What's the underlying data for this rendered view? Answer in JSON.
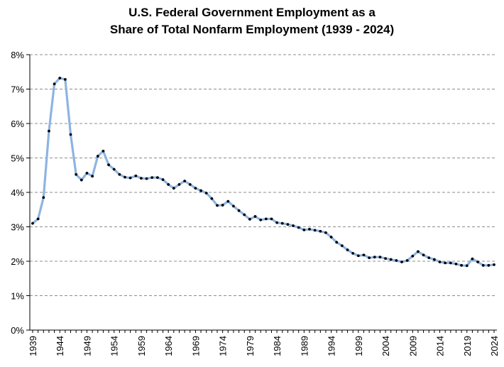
{
  "chart_data": {
    "type": "line",
    "title_line1": "U.S. Federal Government Employment as a",
    "title_line2": "Share of Total Nonfarm Employment (1939 - 2024)",
    "xlabel": "",
    "ylabel": "",
    "ylim": [
      0,
      8
    ],
    "y_ticks": [
      "0%",
      "1%",
      "2%",
      "3%",
      "4%",
      "5%",
      "6%",
      "7%",
      "8%"
    ],
    "x_tick_labels": [
      "1939",
      "1944",
      "1949",
      "1954",
      "1959",
      "1964",
      "1969",
      "1974",
      "1979",
      "1984",
      "1989",
      "1994",
      "1999",
      "2004",
      "2009",
      "2014",
      "2019",
      "2024"
    ],
    "grid": true,
    "legend": "none",
    "line_color": "#8db4e2",
    "marker_color": "#000000",
    "x": [
      1939,
      1940,
      1941,
      1942,
      1943,
      1944,
      1945,
      1946,
      1947,
      1948,
      1949,
      1950,
      1951,
      1952,
      1953,
      1954,
      1955,
      1956,
      1957,
      1958,
      1959,
      1960,
      1961,
      1962,
      1963,
      1964,
      1965,
      1966,
      1967,
      1968,
      1969,
      1970,
      1971,
      1972,
      1973,
      1974,
      1975,
      1976,
      1977,
      1978,
      1979,
      1980,
      1981,
      1982,
      1983,
      1984,
      1985,
      1986,
      1987,
      1988,
      1989,
      1990,
      1991,
      1992,
      1993,
      1994,
      1995,
      1996,
      1997,
      1998,
      1999,
      2000,
      2001,
      2002,
      2003,
      2004,
      2005,
      2006,
      2007,
      2008,
      2009,
      2010,
      2011,
      2012,
      2013,
      2014,
      2015,
      2016,
      2017,
      2018,
      2019,
      2020,
      2021,
      2022,
      2023,
      2024
    ],
    "series": [
      {
        "values": [
          3.1,
          3.23,
          3.85,
          5.78,
          7.15,
          7.32,
          7.28,
          5.68,
          4.52,
          4.36,
          4.56,
          4.47,
          5.05,
          5.2,
          4.8,
          4.67,
          4.52,
          4.44,
          4.42,
          4.48,
          4.41,
          4.4,
          4.43,
          4.43,
          4.37,
          4.23,
          4.12,
          4.23,
          4.33,
          4.23,
          4.12,
          4.05,
          3.98,
          3.82,
          3.62,
          3.63,
          3.74,
          3.6,
          3.47,
          3.35,
          3.22,
          3.3,
          3.2,
          3.23,
          3.23,
          3.12,
          3.1,
          3.07,
          3.03,
          2.98,
          2.91,
          2.93,
          2.9,
          2.87,
          2.83,
          2.7,
          2.55,
          2.45,
          2.33,
          2.23,
          2.16,
          2.18,
          2.1,
          2.12,
          2.12,
          2.08,
          2.05,
          2.02,
          1.98,
          2.02,
          2.15,
          2.28,
          2.18,
          2.1,
          2.05,
          1.98,
          1.95,
          1.95,
          1.92,
          1.88,
          1.87,
          2.07,
          1.98,
          1.88,
          1.88,
          1.9
        ]
      }
    ]
  }
}
